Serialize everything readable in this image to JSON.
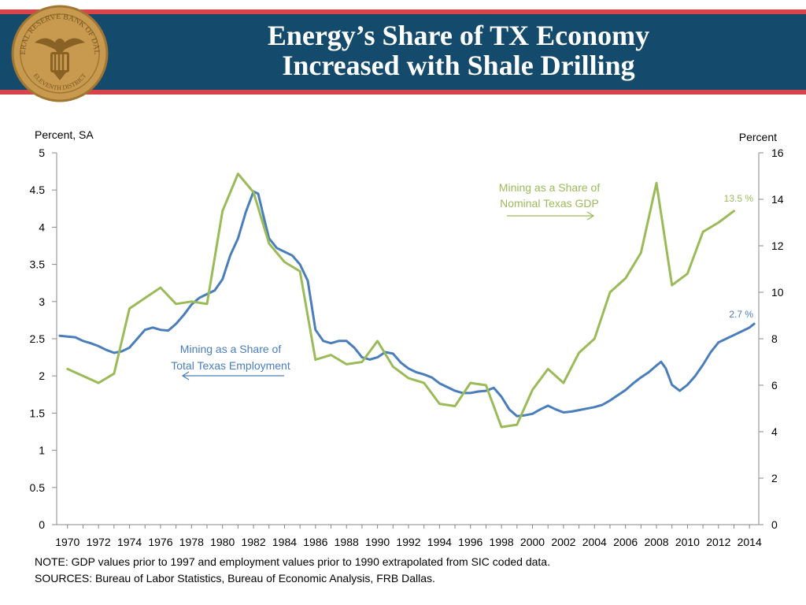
{
  "header": {
    "title_line1": "Energy’s Share of TX Economy",
    "title_line2": "Increased with Shale Drilling",
    "seal": {
      "top_text": "FEDERAL RESERVE BANK OF DALLAS",
      "bottom_text": "ELEVENTH DISTRICT",
      "fill": "#c79a4f",
      "stroke": "#a07632"
    },
    "colors": {
      "banner": "#144a6b",
      "stripe": "#d9434a"
    }
  },
  "chart_data": {
    "type": "line",
    "title": "",
    "x_ticks": [
      "1970",
      "1972",
      "1974",
      "1976",
      "1978",
      "1980",
      "1982",
      "1984",
      "1986",
      "1988",
      "1990",
      "1992",
      "1994",
      "1996",
      "1998",
      "2000",
      "2002",
      "2004",
      "2006",
      "2008",
      "2010",
      "2012",
      "2014"
    ],
    "xlim": [
      1969.3,
      2014.6
    ],
    "left_axis": {
      "label": "Percent, SA",
      "ylim": [
        0,
        5
      ],
      "ticks": [
        "0",
        "0.5",
        "1",
        "1.5",
        "2",
        "2.5",
        "3",
        "3.5",
        "4",
        "4.5",
        "5"
      ]
    },
    "right_axis": {
      "label": "Percent",
      "ylim": [
        0,
        16
      ],
      "ticks": [
        "0",
        "2",
        "4",
        "6",
        "8",
        "10",
        "12",
        "14",
        "16"
      ]
    },
    "series": [
      {
        "name": "Mining as a Share of Total Texas Employment",
        "label_line1": "Mining as a Share of",
        "label_line2": "Total Texas Employment",
        "axis": "left",
        "color": "#4a7ebb",
        "end_label": "2.7 %",
        "points": [
          [
            1969.5,
            2.54
          ],
          [
            1970.0,
            2.53
          ],
          [
            1970.5,
            2.52
          ],
          [
            1971.0,
            2.47
          ],
          [
            1971.5,
            2.44
          ],
          [
            1972.0,
            2.4
          ],
          [
            1972.5,
            2.35
          ],
          [
            1973.0,
            2.31
          ],
          [
            1973.5,
            2.33
          ],
          [
            1974.0,
            2.38
          ],
          [
            1974.5,
            2.5
          ],
          [
            1975.0,
            2.62
          ],
          [
            1975.5,
            2.65
          ],
          [
            1976.0,
            2.62
          ],
          [
            1976.5,
            2.61
          ],
          [
            1977.0,
            2.7
          ],
          [
            1977.5,
            2.82
          ],
          [
            1978.0,
            2.96
          ],
          [
            1978.5,
            3.05
          ],
          [
            1979.0,
            3.1
          ],
          [
            1979.5,
            3.15
          ],
          [
            1980.0,
            3.3
          ],
          [
            1980.5,
            3.62
          ],
          [
            1981.0,
            3.85
          ],
          [
            1981.5,
            4.2
          ],
          [
            1982.0,
            4.48
          ],
          [
            1982.3,
            4.45
          ],
          [
            1982.7,
            4.1
          ],
          [
            1983.0,
            3.85
          ],
          [
            1983.5,
            3.72
          ],
          [
            1984.0,
            3.67
          ],
          [
            1984.5,
            3.62
          ],
          [
            1985.0,
            3.5
          ],
          [
            1985.5,
            3.28
          ],
          [
            1986.0,
            2.62
          ],
          [
            1986.5,
            2.47
          ],
          [
            1987.0,
            2.44
          ],
          [
            1987.5,
            2.47
          ],
          [
            1988.0,
            2.47
          ],
          [
            1988.5,
            2.38
          ],
          [
            1989.0,
            2.25
          ],
          [
            1989.5,
            2.22
          ],
          [
            1990.0,
            2.25
          ],
          [
            1990.5,
            2.32
          ],
          [
            1991.0,
            2.3
          ],
          [
            1991.5,
            2.18
          ],
          [
            1992.0,
            2.1
          ],
          [
            1992.5,
            2.05
          ],
          [
            1993.0,
            2.02
          ],
          [
            1993.5,
            1.98
          ],
          [
            1994.0,
            1.9
          ],
          [
            1994.5,
            1.85
          ],
          [
            1995.0,
            1.8
          ],
          [
            1995.5,
            1.77
          ],
          [
            1996.0,
            1.77
          ],
          [
            1996.5,
            1.79
          ],
          [
            1997.0,
            1.8
          ],
          [
            1997.5,
            1.84
          ],
          [
            1998.0,
            1.72
          ],
          [
            1998.5,
            1.55
          ],
          [
            1999.0,
            1.46
          ],
          [
            1999.5,
            1.47
          ],
          [
            2000.0,
            1.49
          ],
          [
            2000.5,
            1.55
          ],
          [
            2001.0,
            1.6
          ],
          [
            2001.5,
            1.55
          ],
          [
            2002.0,
            1.51
          ],
          [
            2002.5,
            1.52
          ],
          [
            2003.0,
            1.54
          ],
          [
            2003.5,
            1.56
          ],
          [
            2004.0,
            1.58
          ],
          [
            2004.5,
            1.61
          ],
          [
            2005.0,
            1.67
          ],
          [
            2005.5,
            1.74
          ],
          [
            2006.0,
            1.81
          ],
          [
            2006.5,
            1.9
          ],
          [
            2007.0,
            1.98
          ],
          [
            2007.5,
            2.05
          ],
          [
            2008.0,
            2.14
          ],
          [
            2008.3,
            2.19
          ],
          [
            2008.6,
            2.1
          ],
          [
            2009.0,
            1.88
          ],
          [
            2009.5,
            1.8
          ],
          [
            2010.0,
            1.88
          ],
          [
            2010.5,
            2.0
          ],
          [
            2011.0,
            2.15
          ],
          [
            2011.5,
            2.32
          ],
          [
            2012.0,
            2.45
          ],
          [
            2012.5,
            2.5
          ],
          [
            2013.0,
            2.55
          ],
          [
            2013.5,
            2.6
          ],
          [
            2014.0,
            2.65
          ],
          [
            2014.3,
            2.7
          ]
        ]
      },
      {
        "name": "Mining as a Share of Nominal Texas GDP",
        "label_line1": "Mining as a Share of",
        "label_line2": "Nominal Texas GDP",
        "axis": "right",
        "color": "#9bbb59",
        "end_label": "13.5 %",
        "points": [
          [
            1970,
            6.7
          ],
          [
            1972,
            6.1
          ],
          [
            1973,
            6.5
          ],
          [
            1974,
            9.3
          ],
          [
            1976,
            10.2
          ],
          [
            1977,
            9.5
          ],
          [
            1978,
            9.6
          ],
          [
            1979,
            9.5
          ],
          [
            1980,
            13.5
          ],
          [
            1981,
            15.1
          ],
          [
            1982,
            14.3
          ],
          [
            1983,
            12.1
          ],
          [
            1984,
            11.3
          ],
          [
            1985,
            10.9
          ],
          [
            1986,
            7.1
          ],
          [
            1987,
            7.3
          ],
          [
            1988,
            6.9
          ],
          [
            1989,
            7.0
          ],
          [
            1990,
            7.9
          ],
          [
            1991,
            6.8
          ],
          [
            1992,
            6.3
          ],
          [
            1993,
            6.1
          ],
          [
            1994,
            5.2
          ],
          [
            1995,
            5.1
          ],
          [
            1996,
            6.1
          ],
          [
            1997,
            6.0
          ],
          [
            1998,
            4.2
          ],
          [
            1999,
            4.3
          ],
          [
            2000,
            5.8
          ],
          [
            2001,
            6.7
          ],
          [
            2002,
            6.1
          ],
          [
            2003,
            7.4
          ],
          [
            2004,
            8.0
          ],
          [
            2005,
            10.0
          ],
          [
            2006,
            10.6
          ],
          [
            2007,
            11.7
          ],
          [
            2008,
            14.7
          ],
          [
            2009,
            10.3
          ],
          [
            2010,
            10.8
          ],
          [
            2011,
            12.6
          ],
          [
            2012,
            13.0
          ],
          [
            2013,
            13.5
          ]
        ]
      }
    ]
  },
  "notes": {
    "line1": "NOTE: GDP values prior to 1997 and employment values prior to 1990 extrapolated from SIC coded data.",
    "line2": "SOURCES: Bureau of Labor Statistics, Bureau of Economic Analysis, FRB Dallas."
  }
}
